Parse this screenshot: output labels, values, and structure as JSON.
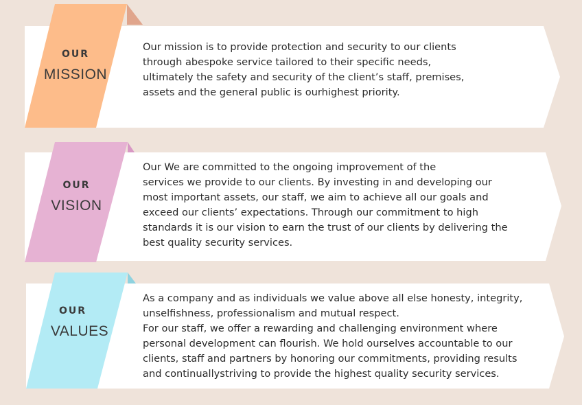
{
  "colors": {
    "background": "#efe3da",
    "card": "#ffffff",
    "mission_ribbon": "#fdbc8a",
    "mission_fold": "#e0a58c",
    "vision_ribbon": "#e6b2d3",
    "vision_fold": "#d898c4",
    "values_ribbon": "#b3ebf5",
    "values_fold": "#8fd2df"
  },
  "mission": {
    "label_top": "OUR",
    "label_bottom": "MISSION",
    "text": "Our mission is to provide protection and security to our clients\nthrough abespoke service tailored to their specific needs,\nultimately the safety and security of the client’s staff, premises,\nassets and the general public is ourhighest priority."
  },
  "vision": {
    "label_top": "OUR",
    "label_bottom": "VISION",
    "text": "Our We are committed to the ongoing improvement of the\nservices we provide to our clients. By investing in and developing our\nmost important assets, our staff, we aim to achieve all our goals and\nexceed our clients’ expectations. Through our commitment to high\nstandards it is our vision to earn the trust of our clients by delivering the\nbest quality security services."
  },
  "values": {
    "label_top": "OUR",
    "label_bottom": "VALUES",
    "text": "As a company and as individuals we value above all else honesty, integrity,\nunselfishness, professionalism and mutual respect.\n For our staff, we offer a rewarding and challenging environment where\npersonal development can flourish. We hold ourselves accountable to our\nclients, staff and partners by honoring our commitments, providing results\nand continuallystriving to provide the highest quality security services."
  }
}
